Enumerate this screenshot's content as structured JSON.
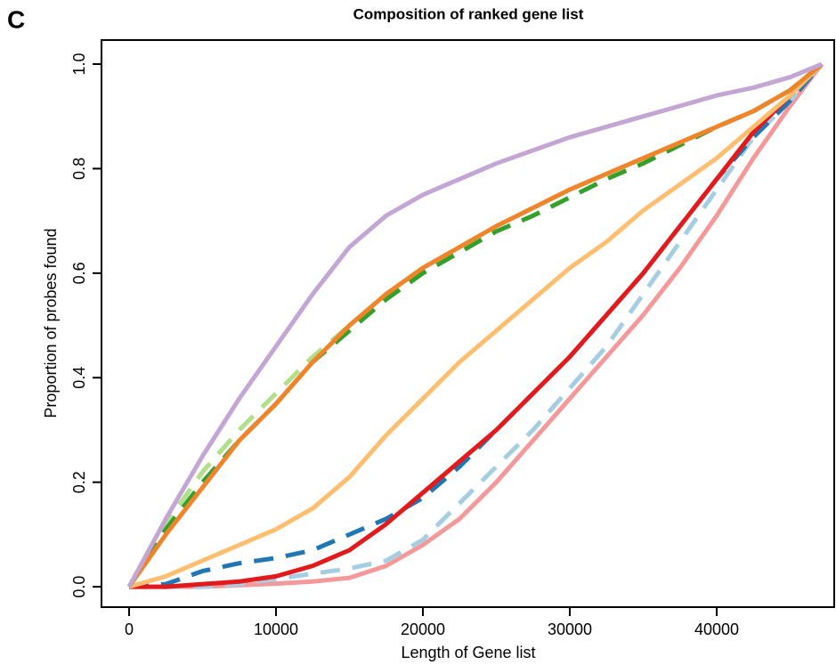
{
  "panel_label": "C",
  "chart_data": {
    "type": "line",
    "title": "Composition of ranked gene list",
    "x_label": "Length of Gene list",
    "y_label": "Proportion of probes found",
    "x": [
      0,
      2500,
      5000,
      7500,
      10000,
      12500,
      15000,
      17500,
      20000,
      22500,
      25000,
      27500,
      30000,
      32500,
      35000,
      37500,
      40000,
      42500,
      45000,
      47150
    ],
    "xlim": [
      -1880,
      48000
    ],
    "ylim": [
      -0.039,
      1.046
    ],
    "xticks": [
      0,
      10000,
      20000,
      30000,
      40000
    ],
    "yticks": [
      {
        "value": 0,
        "label": "0.0"
      },
      {
        "value": 0.2,
        "label": "0.2"
      },
      {
        "value": 0.4,
        "label": "0.4"
      },
      {
        "value": 0.6,
        "label": "0.6"
      },
      {
        "value": 0.8,
        "label": "0.8"
      },
      {
        "value": 1,
        "label": "1.0"
      }
    ],
    "series": [
      {
        "color": "#f4999a",
        "dashed": false,
        "values": [
          0,
          0,
          0,
          0.003,
          0.006,
          0.01,
          0.017,
          0.04,
          0.08,
          0.13,
          0.2,
          0.28,
          0.36,
          0.44,
          0.52,
          0.61,
          0.71,
          0.82,
          0.92,
          1
        ]
      },
      {
        "color": "#a6cee3",
        "dashed": true,
        "values": [
          0,
          0,
          0,
          0.005,
          0.015,
          0.025,
          0.035,
          0.05,
          0.09,
          0.16,
          0.23,
          0.3,
          0.38,
          0.46,
          0.56,
          0.66,
          0.76,
          0.86,
          0.93,
          1
        ]
      },
      {
        "color": "#1f78b4",
        "dashed": true,
        "values": [
          0,
          0.005,
          0.03,
          0.045,
          0.055,
          0.07,
          0.1,
          0.13,
          0.17,
          0.23,
          0.3,
          0.37,
          0.44,
          0.52,
          0.6,
          0.69,
          0.78,
          0.86,
          0.93,
          1
        ]
      },
      {
        "color": "#e31a1c",
        "dashed": false,
        "values": [
          0,
          0,
          0.005,
          0.01,
          0.02,
          0.04,
          0.07,
          0.12,
          0.18,
          0.24,
          0.3,
          0.37,
          0.44,
          0.52,
          0.6,
          0.69,
          0.78,
          0.87,
          0.94,
          1
        ]
      },
      {
        "color": "#fdbf6f",
        "dashed": false,
        "values": [
          0,
          0.02,
          0.05,
          0.08,
          0.11,
          0.15,
          0.21,
          0.29,
          0.36,
          0.43,
          0.49,
          0.55,
          0.61,
          0.66,
          0.72,
          0.77,
          0.82,
          0.88,
          0.94,
          1
        ]
      },
      {
        "color": "#b2df8a",
        "dashed": true,
        "values": [
          0,
          0.12,
          0.22,
          0.3,
          0.37,
          0.44,
          0.5,
          0.56,
          0.61,
          0.65,
          0.69,
          0.725,
          0.76,
          0.79,
          0.82,
          0.85,
          0.88,
          0.91,
          0.95,
          1
        ]
      },
      {
        "color": "#33a02c",
        "dashed": true,
        "values": [
          0,
          0.11,
          0.2,
          0.28,
          0.35,
          0.43,
          0.49,
          0.55,
          0.6,
          0.64,
          0.68,
          0.71,
          0.745,
          0.78,
          0.81,
          0.845,
          0.88,
          0.91,
          0.95,
          1
        ]
      },
      {
        "color": "#f0842a",
        "dashed": false,
        "values": [
          0,
          0.1,
          0.19,
          0.28,
          0.35,
          0.43,
          0.5,
          0.56,
          0.61,
          0.65,
          0.69,
          0.725,
          0.76,
          0.79,
          0.82,
          0.85,
          0.88,
          0.91,
          0.95,
          1
        ]
      },
      {
        "color": "#c3a6d4",
        "dashed": false,
        "values": [
          0,
          0.13,
          0.25,
          0.36,
          0.46,
          0.56,
          0.65,
          0.71,
          0.75,
          0.78,
          0.81,
          0.835,
          0.86,
          0.88,
          0.9,
          0.92,
          0.94,
          0.955,
          0.975,
          1
        ]
      }
    ]
  }
}
